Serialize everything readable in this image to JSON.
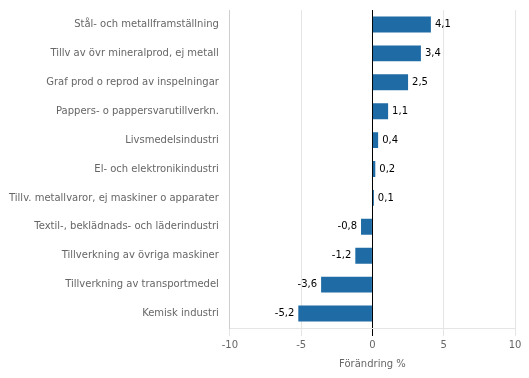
{
  "chart_data": {
    "type": "bar",
    "orientation": "horizontal",
    "xlabel": "Förändring %",
    "categories": [
      "Kemisk industri",
      "Tillverkning av transportmedel",
      "Tillverkning av övriga maskiner",
      "Textil-, beklädnads- och läderindustri",
      "Tillv. metallvaror, ej maskiner o apparater",
      "El- och elektronikindustri",
      "Livsmedelsindustri",
      "Pappers- o pappersvarutillverkn.",
      "Graf prod o reprod av inspelningar",
      "Tillv av övr mineralprod, ej metall",
      "Stål- och metallframställning"
    ],
    "values": [
      -5.2,
      -3.6,
      -1.2,
      -0.8,
      0.1,
      0.2,
      0.4,
      1.1,
      2.5,
      3.4,
      4.1
    ],
    "value_labels": [
      "-5,2",
      "-3,6",
      "-1,2",
      "-0,8",
      "0,1",
      "0,2",
      "0,4",
      "1,1",
      "2,5",
      "3,4",
      "4,1"
    ],
    "data_labels": true,
    "color": "#1f6ba5",
    "xlim": [
      -10,
      10
    ],
    "xticks": [
      -10,
      -5,
      0,
      5,
      10
    ],
    "grid": true
  }
}
